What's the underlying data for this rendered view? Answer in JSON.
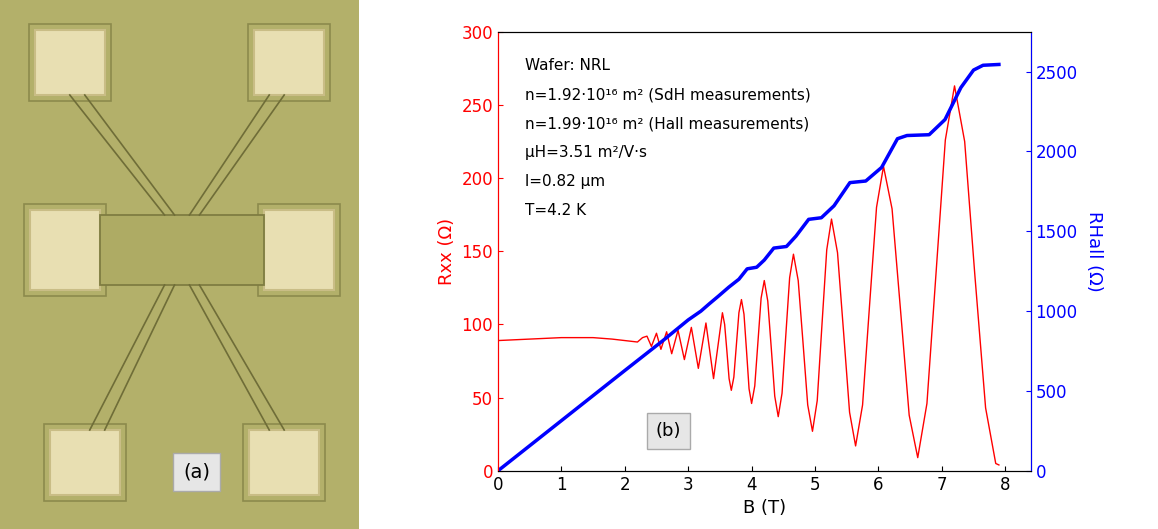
{
  "image": {
    "label": "(a)"
  },
  "chart_data": {
    "type": "line",
    "xlabel": "B (T)",
    "ylabel": "Rxx (Ω)",
    "y2label": "RHall (Ω)",
    "xlim": [
      0,
      8.4
    ],
    "xticks": [
      0,
      1,
      2,
      3,
      4,
      5,
      6,
      7,
      8
    ],
    "ylim": [
      0,
      300
    ],
    "yticks": [
      0,
      50,
      100,
      150,
      200,
      250,
      300
    ],
    "y2lim": [
      0,
      2750
    ],
    "y2ticks": [
      0,
      500,
      1000,
      1500,
      2000,
      2500
    ],
    "annotations": [
      "Wafer: NRL",
      "n=1.92·10¹⁶ m² (SdH measurements)",
      "n=1.99·10¹⁶ m² (Hall measurements)",
      "μH=3.51 m²/V·s",
      "l=0.82 μm",
      "T=4.2 K",
      "(b)"
    ],
    "series": [
      {
        "color": "#ff0000",
        "axis": "y",
        "x": [
          0,
          0.5,
          1.0,
          1.5,
          1.8,
          2.0,
          2.2,
          2.28,
          2.35,
          2.42,
          2.5,
          2.57,
          2.66,
          2.74,
          2.84,
          2.94,
          3.05,
          3.16,
          3.28,
          3.4,
          3.54,
          3.575,
          3.61,
          3.645,
          3.68,
          3.72,
          3.76,
          3.8,
          3.84,
          3.88,
          3.92,
          3.96,
          4.0,
          4.05,
          4.1,
          4.15,
          4.2,
          4.255,
          4.31,
          4.365,
          4.42,
          4.48,
          4.54,
          4.6,
          4.66,
          4.735,
          4.81,
          4.885,
          4.96,
          5.035,
          5.11,
          5.185,
          5.26,
          5.355,
          5.45,
          5.545,
          5.64,
          5.75,
          5.86,
          5.97,
          6.08,
          6.215,
          6.35,
          6.485,
          6.62,
          6.765,
          6.91,
          7.055,
          7.2,
          7.36,
          7.52,
          7.69,
          7.85,
          7.9
        ],
        "values": [
          89,
          90,
          91,
          91,
          90,
          89,
          88,
          91,
          92,
          85,
          94,
          83,
          95,
          80,
          96,
          76,
          98,
          70,
          101,
          63,
          108,
          100,
          82,
          63,
          55,
          64,
          86,
          108,
          117,
          107,
          82,
          56,
          46,
          58,
          88,
          118,
          130,
          116,
          84,
          51,
          37,
          53,
          93,
          132,
          148,
          130,
          88,
          45,
          27,
          48,
          100,
          151,
          172,
          149,
          95,
          40,
          17,
          45,
          113,
          180,
          208,
          179,
          109,
          38,
          9,
          46,
          136,
          226,
          263,
          225,
          134,
          43,
          5,
          4
        ]
      },
      {
        "color": "#0000ff",
        "axis": "y2",
        "x": [
          0,
          1,
          2,
          2.6,
          3.0,
          3.2,
          3.33,
          3.48,
          3.64,
          3.8,
          3.93,
          4.08,
          4.2,
          4.35,
          4.55,
          4.7,
          4.9,
          5.1,
          5.3,
          5.55,
          5.8,
          6.05,
          6.3,
          6.45,
          6.8,
          7.05,
          7.3,
          7.5,
          7.65,
          7.9
        ],
        "values": [
          0,
          314,
          628,
          815,
          945,
          1000,
          1045,
          1095,
          1150,
          1200,
          1265,
          1275,
          1320,
          1395,
          1405,
          1470,
          1575,
          1585,
          1660,
          1805,
          1815,
          1900,
          2080,
          2100,
          2105,
          2200,
          2400,
          2510,
          2540,
          2545
        ]
      }
    ]
  }
}
